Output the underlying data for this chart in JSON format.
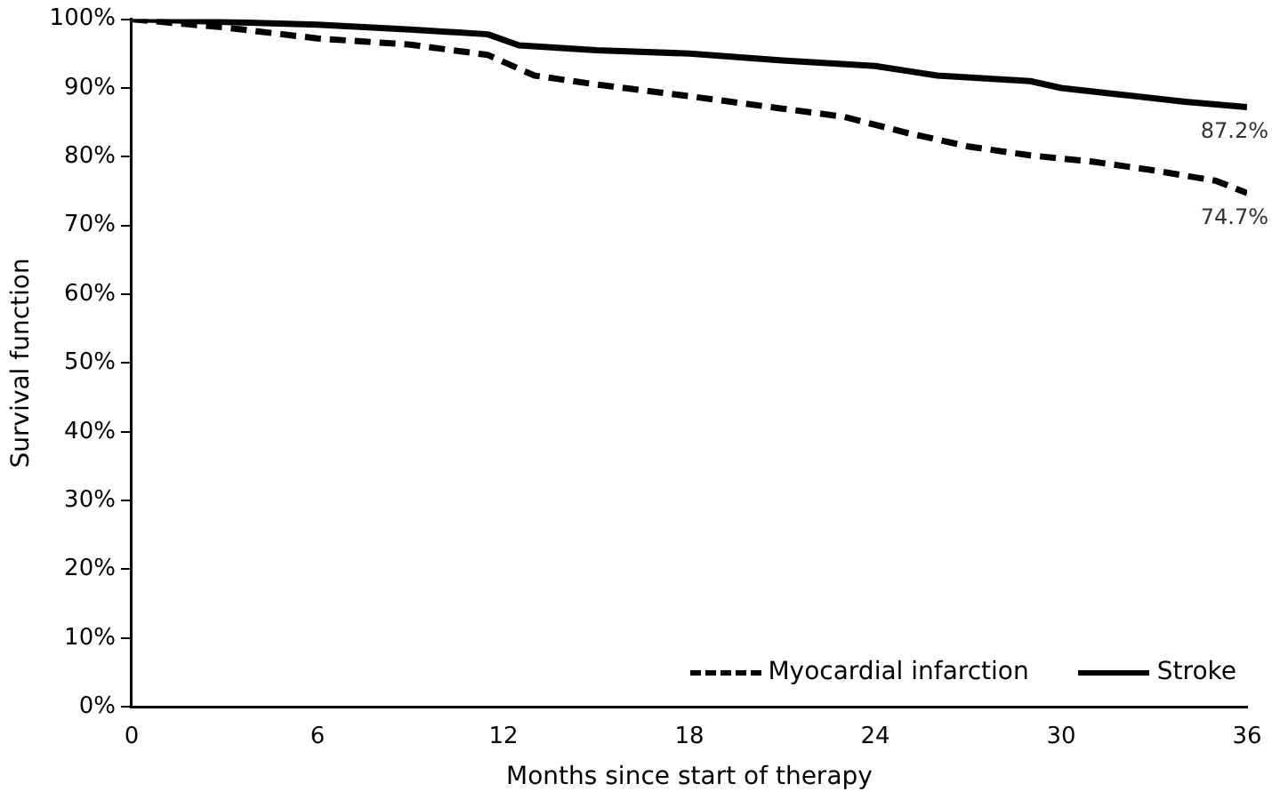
{
  "chart_data": {
    "type": "line",
    "xlabel": "Months since start of therapy",
    "ylabel": "Survival function",
    "xlim": [
      0,
      36
    ],
    "xticks": [
      0,
      6,
      12,
      18,
      24,
      30,
      36
    ],
    "ylim": [
      0,
      100
    ],
    "yticks": [
      {
        "value": 0,
        "label": "0%"
      },
      {
        "value": 10,
        "label": "10%"
      },
      {
        "value": 20,
        "label": "20%"
      },
      {
        "value": 30,
        "label": "30%"
      },
      {
        "value": 40,
        "label": "40%"
      },
      {
        "value": 50,
        "label": "50%"
      },
      {
        "value": 60,
        "label": "60%"
      },
      {
        "value": 70,
        "label": "70%"
      },
      {
        "value": 80,
        "label": "80%"
      },
      {
        "value": 90,
        "label": "90%"
      },
      {
        "value": 100,
        "label": "100%"
      }
    ],
    "grid": false,
    "legend": "bottom right",
    "marker": "none",
    "series": [
      {
        "name": "Myocardial infarction",
        "color": "#000000",
        "line_style": "dashed",
        "x": [
          0,
          3,
          6,
          9,
          11.5,
          13,
          15,
          18,
          21,
          23,
          25,
          27,
          29,
          31,
          33,
          35,
          36
        ],
        "values": [
          100,
          98.8,
          97.2,
          96.3,
          94.8,
          91.8,
          90.5,
          88.8,
          87,
          85.8,
          83.5,
          81.5,
          80.2,
          79.3,
          78,
          76.5,
          74.7
        ]
      },
      {
        "name": "Stroke",
        "color": "#000000",
        "line_style": "solid",
        "x": [
          0,
          6,
          9,
          11.5,
          12.5,
          15,
          18,
          21,
          24,
          25,
          26,
          29,
          30,
          32,
          34,
          36
        ],
        "values": [
          100,
          99.2,
          98.5,
          97.8,
          96.2,
          95.5,
          95,
          94,
          93.2,
          92.5,
          91.8,
          91,
          90,
          89,
          88,
          87.2
        ]
      }
    ],
    "annotations": [
      {
        "text": "87.2%",
        "x": 36,
        "y": 87.2
      },
      {
        "text": "74.7%",
        "x": 36,
        "y": 74.7
      }
    ]
  }
}
